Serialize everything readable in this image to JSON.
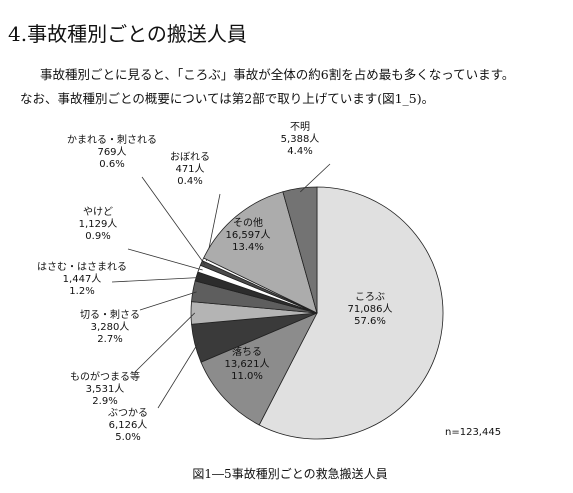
{
  "heading": "4.事故種別ごとの搬送人員",
  "paragraph": [
    "事故種別ごとに見ると、「ころぶ」事故が全体の約6割を占め最も多くなっています。",
    "なお、事故種別ごとの概要については第2部で取り上げています(図1_5)。"
  ],
  "chart_data": {
    "type": "pie",
    "title": "図1―5事故種別ごとの救急搬送人員",
    "note": "n=123,445",
    "categories": [
      "ころぶ",
      "落ちる",
      "ぶつかる",
      "ものがつまる等",
      "切る・刺さる",
      "はさむ・はさまれる",
      "やけど",
      "かまれる・刺される",
      "おぼれる",
      "その他",
      "不明"
    ],
    "values": [
      71086,
      13621,
      6126,
      3531,
      3280,
      1447,
      1129,
      769,
      471,
      16597,
      5388
    ],
    "value_labels": [
      "71,086人",
      "13,621人",
      "6,126人",
      "3,531人",
      "3,280人",
      "1,447人",
      "1,129人",
      "769人",
      "471人",
      "16,597人",
      "5,388人"
    ],
    "shares": [
      57.6,
      11.0,
      5.0,
      2.9,
      2.7,
      1.2,
      0.9,
      0.6,
      0.4,
      13.4,
      4.4
    ],
    "share_labels": [
      "57.6%",
      "11.0%",
      "5.0%",
      "2.9%",
      "2.7%",
      "1.2%",
      "0.9%",
      "0.6%",
      "0.4%",
      "13.4%",
      "4.4%"
    ],
    "colors": [
      "#e0e0e0",
      "#8c8c8c",
      "#3a3a3a",
      "#b4b4b4",
      "#5e5e5e",
      "#2c2c2c",
      "#ffffff",
      "#4a4a4a",
      "#ffffff",
      "#acacac",
      "#737373"
    ]
  }
}
